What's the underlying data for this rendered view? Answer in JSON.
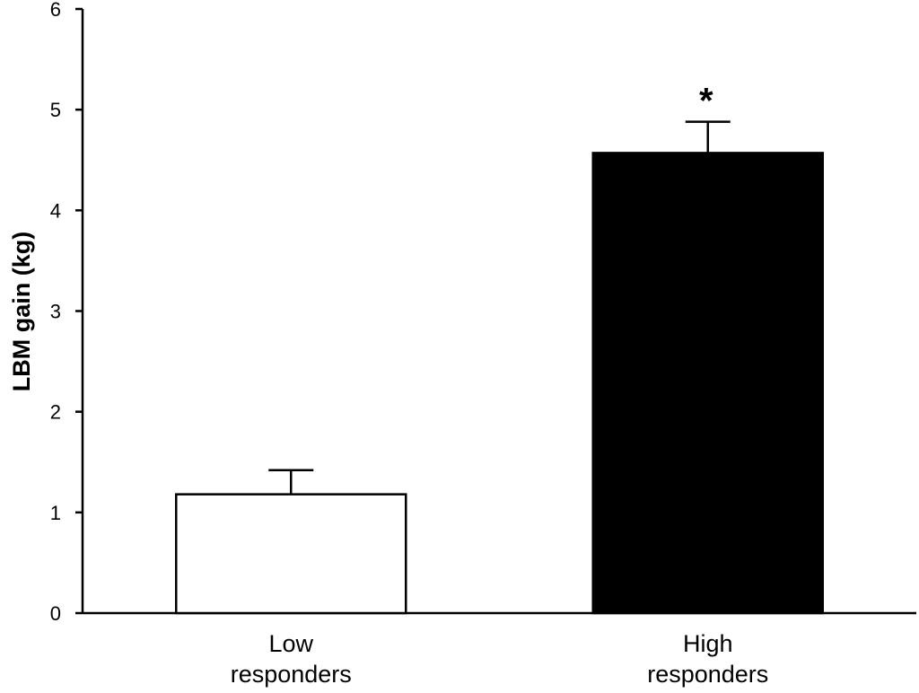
{
  "chart_data": {
    "type": "bar",
    "title": "",
    "xlabel": "",
    "ylabel": "LBM gain (kg)",
    "ylim": [
      0,
      6
    ],
    "yticks": [
      0,
      1,
      2,
      3,
      4,
      5,
      6
    ],
    "categories": [
      [
        "Low",
        "responders"
      ],
      [
        "High",
        "responders"
      ]
    ],
    "values": [
      1.18,
      4.57
    ],
    "errors": [
      0.24,
      0.31
    ],
    "bar_colors": [
      "#ffffff",
      "#000000"
    ],
    "annotations": [
      {
        "category_index": 1,
        "text": "*"
      }
    ],
    "grid": false,
    "legend": "none"
  }
}
